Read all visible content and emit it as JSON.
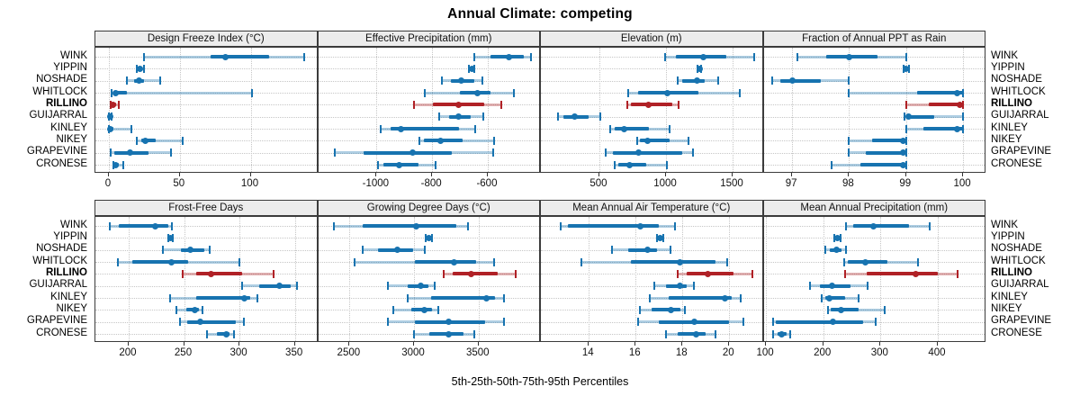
{
  "figure": {
    "title": "Annual Climate: competing",
    "xlabel": "5th-25th-50th-75th-95th Percentiles",
    "highlight_row": "RILLINO",
    "colors": {
      "series_normal": "#1773b0",
      "series_highlight": "#b02126",
      "band_opacity": 0.35,
      "grid": "#c6c6c6",
      "strip_background": "#ececec",
      "panel_border": "#3b3b3b",
      "tick": "#333333"
    }
  },
  "rows": [
    "WINK",
    "YIPPIN",
    "NOSHADE",
    "WHITLOCK",
    "RILLINO",
    "GUIJARRAL",
    "KINLEY",
    "NIKEY",
    "GRAPEVINE",
    "CRONESE"
  ],
  "chart_data": [
    {
      "type": "dotplot-interval",
      "title": "Design Freeze Index (°C)",
      "grid_row": 0,
      "grid_col": 0,
      "percentiles": [
        5,
        25,
        50,
        75,
        95
      ],
      "tick_labels": [
        "0",
        "50",
        "100"
      ],
      "tick_values": [
        0,
        50,
        100
      ],
      "xlim": [
        -9.5,
        147.6
      ],
      "series": [
        {
          "name": "WINK",
          "p": [
            25,
            72,
            82,
            113,
            138
          ]
        },
        {
          "name": "YIPPIN",
          "p": [
            20,
            21,
            22,
            23,
            25
          ]
        },
        {
          "name": "NOSHADE",
          "p": [
            13,
            18,
            21,
            25,
            36
          ]
        },
        {
          "name": "WHITLOCK",
          "p": [
            2,
            3,
            5,
            13,
            101
          ]
        },
        {
          "name": "RILLINO",
          "p": [
            1,
            2,
            3,
            5,
            7
          ]
        },
        {
          "name": "GUIJARRAL",
          "p": [
            0,
            0.5,
            1,
            1.5,
            2
          ]
        },
        {
          "name": "KINLEY",
          "p": [
            0,
            0.5,
            1,
            3,
            16
          ]
        },
        {
          "name": "NIKEY",
          "p": [
            20,
            23,
            26,
            33,
            52
          ]
        },
        {
          "name": "GRAPEVINE",
          "p": [
            1,
            4,
            15,
            28,
            44
          ]
        },
        {
          "name": "CRONESE",
          "p": [
            3,
            4,
            5,
            7,
            10
          ]
        }
      ]
    },
    {
      "type": "dotplot-interval",
      "title": "Effective Precipitation (mm)",
      "grid_row": 0,
      "grid_col": 1,
      "percentiles": [
        5,
        25,
        50,
        75,
        95
      ],
      "tick_labels": [
        "-1000",
        "-800",
        "-600"
      ],
      "tick_values": [
        -1000,
        -800,
        -600
      ],
      "xlim": [
        -1210,
        -409
      ],
      "series": [
        {
          "name": "WINK",
          "p": [
            -650,
            -590,
            -525,
            -470,
            -445
          ]
        },
        {
          "name": "YIPPIN",
          "p": [
            -668,
            -662,
            -657,
            -652,
            -647
          ]
        },
        {
          "name": "NOSHADE",
          "p": [
            -765,
            -733,
            -695,
            -650,
            -618
          ]
        },
        {
          "name": "WHITLOCK",
          "p": [
            -827,
            -700,
            -636,
            -590,
            -505
          ]
        },
        {
          "name": "RILLINO",
          "p": [
            -866,
            -797,
            -706,
            -613,
            -552
          ]
        },
        {
          "name": "GUIJARRAL",
          "p": [
            -776,
            -740,
            -704,
            -660,
            -617
          ]
        },
        {
          "name": "KINLEY",
          "p": [
            -985,
            -950,
            -913,
            -705,
            -645
          ]
        },
        {
          "name": "NIKEY",
          "p": [
            -846,
            -830,
            -770,
            -690,
            -578
          ]
        },
        {
          "name": "GRAPEVINE",
          "p": [
            -1151,
            -1045,
            -871,
            -730,
            -582
          ]
        },
        {
          "name": "CRONESE",
          "p": [
            -995,
            -974,
            -920,
            -850,
            -787
          ]
        }
      ]
    },
    {
      "type": "dotplot-interval",
      "title": "Elevation (m)",
      "grid_row": 0,
      "grid_col": 2,
      "percentiles": [
        5,
        25,
        50,
        75,
        95
      ],
      "tick_labels": [
        "500",
        "1000",
        "1500"
      ],
      "tick_values": [
        500,
        1000,
        1500
      ],
      "xlim": [
        61,
        1733
      ],
      "series": [
        {
          "name": "WINK",
          "p": [
            990,
            1075,
            1280,
            1455,
            1660
          ]
        },
        {
          "name": "YIPPIN",
          "p": [
            1235,
            1245,
            1250,
            1255,
            1265
          ]
        },
        {
          "name": "NOSHADE",
          "p": [
            1090,
            1120,
            1232,
            1290,
            1394
          ]
        },
        {
          "name": "WHITLOCK",
          "p": [
            714,
            790,
            1007,
            1240,
            1552
          ]
        },
        {
          "name": "RILLINO",
          "p": [
            707,
            736,
            867,
            1050,
            1093
          ]
        },
        {
          "name": "GUIJARRAL",
          "p": [
            189,
            230,
            315,
            420,
            507
          ]
        },
        {
          "name": "KINLEY",
          "p": [
            579,
            613,
            687,
            870,
            1029
          ]
        },
        {
          "name": "NIKEY",
          "p": [
            782,
            805,
            860,
            1030,
            1169
          ]
        },
        {
          "name": "GRAPEVINE",
          "p": [
            545,
            600,
            797,
            1120,
            1205
          ]
        },
        {
          "name": "CRONESE",
          "p": [
            617,
            645,
            725,
            850,
            1007
          ]
        }
      ]
    },
    {
      "type": "dotplot-interval",
      "title": "Fraction of Annual PPT as Rain",
      "grid_row": 0,
      "grid_col": 3,
      "percentiles": [
        5,
        25,
        50,
        75,
        95
      ],
      "tick_labels": [
        "97",
        "98",
        "99",
        "100"
      ],
      "tick_values": [
        97,
        98,
        99,
        100
      ],
      "xlim": [
        96.5,
        100.41
      ],
      "series": [
        {
          "name": "WINK",
          "p": [
            97.1,
            97.6,
            98.0,
            98.5,
            99.0
          ]
        },
        {
          "name": "YIPPIN",
          "p": [
            98.95,
            98.98,
            99.0,
            99.02,
            99.05
          ]
        },
        {
          "name": "NOSHADE",
          "p": [
            96.65,
            96.8,
            97.0,
            97.5,
            98.0
          ]
        },
        {
          "name": "WHITLOCK",
          "p": [
            98.0,
            99.2,
            99.9,
            100.0,
            100.0
          ]
        },
        {
          "name": "RILLINO",
          "p": [
            99.0,
            99.4,
            99.95,
            100.0,
            100.0
          ]
        },
        {
          "name": "GUIJARRAL",
          "p": [
            98.97,
            99.0,
            99.05,
            99.5,
            100.0
          ]
        },
        {
          "name": "KINLEY",
          "p": [
            99.0,
            99.3,
            99.9,
            100.0,
            100.0
          ]
        },
        {
          "name": "NIKEY",
          "p": [
            98.0,
            98.4,
            98.95,
            99.0,
            99.0
          ]
        },
        {
          "name": "GRAPEVINE",
          "p": [
            98.0,
            98.3,
            98.95,
            99.0,
            99.0
          ]
        },
        {
          "name": "CRONESE",
          "p": [
            97.7,
            98.2,
            98.95,
            99.0,
            99.0
          ]
        }
      ]
    },
    {
      "type": "dotplot-interval",
      "title": "Frost-Free Days",
      "grid_row": 1,
      "grid_col": 0,
      "percentiles": [
        5,
        25,
        50,
        75,
        95
      ],
      "tick_labels": [
        "200",
        "250",
        "300",
        "350"
      ],
      "tick_values": [
        200,
        250,
        300,
        350
      ],
      "xlim": [
        170,
        371
      ],
      "series": [
        {
          "name": "WINK",
          "p": [
            183,
            191,
            224,
            236,
            239
          ]
        },
        {
          "name": "YIPPIN",
          "p": [
            236,
            237,
            238,
            239,
            240
          ]
        },
        {
          "name": "NOSHADE",
          "p": [
            231,
            247,
            256,
            268,
            273
          ]
        },
        {
          "name": "WHITLOCK",
          "p": [
            190,
            203,
            239,
            254,
            300
          ]
        },
        {
          "name": "RILLINO",
          "p": [
            249,
            261,
            274,
            302,
            331
          ]
        },
        {
          "name": "GUIJARRAL",
          "p": [
            302,
            318,
            336,
            346,
            352
          ]
        },
        {
          "name": "KINLEY",
          "p": [
            237,
            261,
            304,
            310,
            316
          ]
        },
        {
          "name": "NIKEY",
          "p": [
            243,
            252,
            260,
            263,
            267
          ]
        },
        {
          "name": "GRAPEVINE",
          "p": [
            246,
            253,
            265,
            297,
            304
          ]
        },
        {
          "name": "CRONESE",
          "p": [
            271,
            280,
            288,
            291,
            295
          ]
        }
      ]
    },
    {
      "type": "dotplot-interval",
      "title": "Growing Degree Days (°C)",
      "grid_row": 1,
      "grid_col": 1,
      "percentiles": [
        5,
        25,
        50,
        75,
        95
      ],
      "tick_labels": [
        "2500",
        "3000",
        "3500"
      ],
      "tick_values": [
        2500,
        3000,
        3500
      ],
      "xlim": [
        2257,
        3983
      ],
      "series": [
        {
          "name": "WINK",
          "p": [
            2380,
            2600,
            3020,
            3330,
            3420
          ]
        },
        {
          "name": "YIPPIN",
          "p": [
            3090,
            3105,
            3115,
            3125,
            3140
          ]
        },
        {
          "name": "NOSHADE",
          "p": [
            2600,
            2720,
            2870,
            2990,
            3080
          ]
        },
        {
          "name": "WHITLOCK",
          "p": [
            2540,
            3010,
            3310,
            3480,
            3620
          ]
        },
        {
          "name": "RILLINO",
          "p": [
            3230,
            3300,
            3440,
            3650,
            3790
          ]
        },
        {
          "name": "GUIJARRAL",
          "p": [
            2800,
            2950,
            3050,
            3110,
            3160
          ]
        },
        {
          "name": "KINLEY",
          "p": [
            2950,
            3130,
            3560,
            3630,
            3700
          ]
        },
        {
          "name": "NIKEY",
          "p": [
            2840,
            2980,
            3080,
            3140,
            3190
          ]
        },
        {
          "name": "GRAPEVINE",
          "p": [
            2800,
            3010,
            3270,
            3550,
            3700
          ]
        },
        {
          "name": "CRONESE",
          "p": [
            3000,
            3120,
            3270,
            3380,
            3470
          ]
        }
      ]
    },
    {
      "type": "dotplot-interval",
      "title": "Mean Annual Air Temperature (°C)",
      "grid_row": 1,
      "grid_col": 2,
      "percentiles": [
        5,
        25,
        50,
        75,
        95
      ],
      "tick_labels": [
        "14",
        "16",
        "18",
        "20"
      ],
      "tick_values": [
        14,
        16,
        18,
        20
      ],
      "xlim": [
        11.95,
        21.47
      ],
      "series": [
        {
          "name": "WINK",
          "p": [
            12.8,
            13.1,
            16.2,
            17.0,
            17.7
          ]
        },
        {
          "name": "YIPPIN",
          "p": [
            16.9,
            17.0,
            17.05,
            17.1,
            17.2
          ]
        },
        {
          "name": "NOSHADE",
          "p": [
            15.0,
            15.7,
            16.5,
            16.9,
            17.5
          ]
        },
        {
          "name": "WHITLOCK",
          "p": [
            13.7,
            15.8,
            17.9,
            19.4,
            19.9
          ]
        },
        {
          "name": "RILLINO",
          "p": [
            17.8,
            18.2,
            19.1,
            20.2,
            21.0
          ]
        },
        {
          "name": "GUIJARRAL",
          "p": [
            16.8,
            17.3,
            17.9,
            18.2,
            18.5
          ]
        },
        {
          "name": "KINLEY",
          "p": [
            16.6,
            17.4,
            19.8,
            20.1,
            20.5
          ]
        },
        {
          "name": "NIKEY",
          "p": [
            16.2,
            16.7,
            17.5,
            17.9,
            18.1
          ]
        },
        {
          "name": "GRAPEVINE",
          "p": [
            16.1,
            17.0,
            18.5,
            20.0,
            20.6
          ]
        },
        {
          "name": "CRONESE",
          "p": [
            17.3,
            17.8,
            18.6,
            19.0,
            19.4
          ]
        }
      ]
    },
    {
      "type": "dotplot-interval",
      "title": "Mean Annual Precipitation (mm)",
      "grid_row": 1,
      "grid_col": 3,
      "percentiles": [
        5,
        25,
        50,
        75,
        95
      ],
      "tick_labels": [
        "100",
        "200",
        "300",
        "400"
      ],
      "tick_values": [
        100,
        200,
        300,
        400
      ],
      "xlim": [
        96,
        485
      ],
      "series": [
        {
          "name": "WINK",
          "p": [
            240,
            252,
            287,
            350,
            386
          ]
        },
        {
          "name": "YIPPIN",
          "p": [
            220,
            223,
            225,
            227,
            230
          ]
        },
        {
          "name": "NOSHADE",
          "p": [
            203,
            212,
            224,
            232,
            240
          ]
        },
        {
          "name": "WHITLOCK",
          "p": [
            237,
            243,
            274,
            312,
            365
          ]
        },
        {
          "name": "RILLINO",
          "p": [
            238,
            276,
            362,
            400,
            435
          ]
        },
        {
          "name": "GUIJARRAL",
          "p": [
            177,
            195,
            215,
            248,
            277
          ]
        },
        {
          "name": "KINLEY",
          "p": [
            197,
            203,
            210,
            238,
            262
          ]
        },
        {
          "name": "NIKEY",
          "p": [
            209,
            213,
            231,
            262,
            308
          ]
        },
        {
          "name": "GRAPEVINE",
          "p": [
            112,
            118,
            217,
            270,
            292
          ]
        },
        {
          "name": "CRONESE",
          "p": [
            113,
            120,
            128,
            136,
            143
          ]
        }
      ]
    }
  ]
}
